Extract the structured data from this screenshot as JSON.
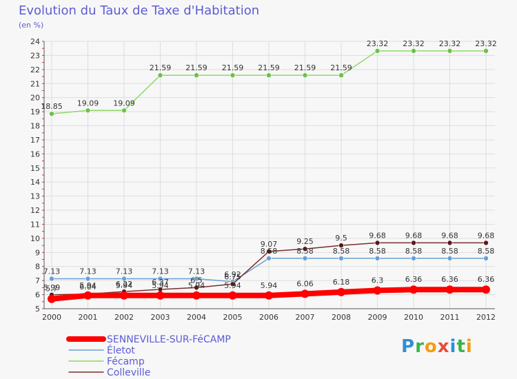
{
  "header": {
    "title": "Evolution du Taux de Taxe d'Habitation",
    "subtitle": "(en %)"
  },
  "chart_data": {
    "type": "line",
    "title": "Evolution du Taux de Taxe d'Habitation",
    "subtitle": "(en %)",
    "ylim": [
      5,
      24
    ],
    "yticks": [
      "5",
      "6",
      "7",
      "8",
      "9",
      "10",
      "11",
      "12",
      "13",
      "14",
      "15",
      "16",
      "17",
      "18",
      "19",
      "20",
      "21",
      "22",
      "23",
      "24"
    ],
    "categories": [
      "2000",
      "2001",
      "2002",
      "2003",
      "2004",
      "2005",
      "2006",
      "2007",
      "2008",
      "2009",
      "2010",
      "2011",
      "2012"
    ],
    "grid": true,
    "legend_position": "bottom-left",
    "series": [
      {
        "name": "SENNEVILLE-SUR-FéCAMP",
        "color": "#ff0000",
        "values": [
          5.7,
          5.94,
          5.94,
          5.94,
          5.94,
          5.94,
          5.94,
          6.06,
          6.18,
          6.3,
          6.36,
          6.36,
          6.36
        ],
        "labels": [
          "5.7",
          "5.94",
          "5.94",
          "5.94",
          "5.94",
          "5.94",
          "5.94",
          "6.06",
          "6.18",
          "6.3",
          "6.36",
          "6.36",
          "6.36"
        ]
      },
      {
        "name": "Életot",
        "color": "#6a9fd4",
        "values": [
          7.13,
          7.13,
          7.13,
          7.13,
          7.13,
          6.92,
          8.58,
          8.58,
          8.58,
          8.58,
          8.58,
          8.58,
          8.58
        ],
        "labels": [
          "7.13",
          "7.13",
          "7.13",
          "7.13",
          "7.13",
          "6.92",
          "8.58",
          "8.58",
          "8.58",
          "8.58",
          "8.58",
          "8.58",
          "8.58"
        ]
      },
      {
        "name": "Fécamp",
        "color": "#8ed868",
        "values": [
          18.85,
          19.09,
          19.09,
          21.59,
          21.59,
          21.59,
          21.59,
          21.59,
          21.59,
          23.32,
          23.32,
          23.32,
          23.32
        ],
        "labels": [
          "18.85",
          "19.09",
          "19.09",
          "21.59",
          "21.59",
          "21.59",
          "21.59",
          "21.59",
          "21.59",
          "23.32",
          "23.32",
          "23.32",
          "23.32"
        ]
      },
      {
        "name": "Colleville",
        "color": "#7b2b2b",
        "values": [
          5.99,
          6.04,
          6.22,
          6.37,
          6.5,
          6.75,
          9.07,
          9.25,
          9.5,
          9.68,
          9.68,
          9.68,
          9.68
        ],
        "labels": [
          "5.99",
          "6.04",
          "6.22",
          "6.37",
          "6.5",
          "6.75",
          "9.07",
          "9.25",
          "9.5",
          "9.68",
          "9.68",
          "9.68",
          "9.68"
        ]
      }
    ]
  },
  "brand": {
    "letters": [
      "P",
      "r",
      "o",
      "x",
      "i",
      "t",
      "i"
    ],
    "colors": [
      "#2f8fd8",
      "#3cb44b",
      "#f39c12",
      "#e74c3c",
      "#2f8fd8",
      "#3cb44b",
      "#f39c12"
    ]
  }
}
